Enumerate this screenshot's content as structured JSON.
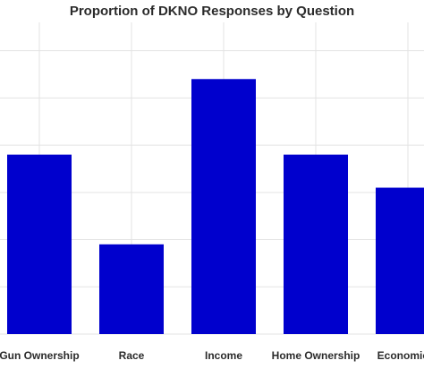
{
  "chart_data": {
    "type": "bar",
    "title": "Proportion of DKNO Responses by Question",
    "xlabel": "",
    "ylabel": "",
    "categories": [
      "Gun Ownership",
      "Race",
      "Income",
      "Home Ownership",
      "Economic V"
    ],
    "values": [
      0.19,
      0.095,
      0.27,
      0.19,
      0.155
    ],
    "ylim": [
      0,
      0.33
    ],
    "grid": true,
    "legend": "none",
    "colors": {
      "bar": "#0000CD",
      "grid": "#e3e3e3",
      "text": "#2b2b2b"
    }
  }
}
